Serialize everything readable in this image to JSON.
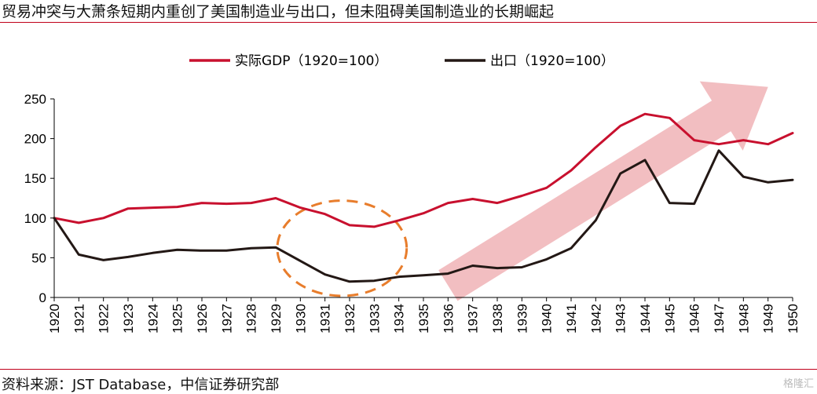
{
  "header": {
    "title": "贸易冲突与大萧条短期内重创了美国制造业与出口，但未阻碍美国制造业的长期崛起"
  },
  "footer": {
    "source": "资料来源：JST Database，中信证券研究部",
    "watermark": "格隆汇"
  },
  "colors": {
    "gdp_series": "#c8102e",
    "export_series": "#231815",
    "arrow": "#f0b3b6",
    "ellipse": "#e87d2c",
    "rule": "#c0001a"
  },
  "chart_data": {
    "type": "line",
    "x": [
      1920,
      1921,
      1922,
      1923,
      1924,
      1925,
      1926,
      1927,
      1928,
      1929,
      1930,
      1931,
      1932,
      1933,
      1934,
      1935,
      1936,
      1937,
      1938,
      1939,
      1940,
      1941,
      1942,
      1943,
      1944,
      1945,
      1946,
      1947,
      1948,
      1949,
      1950
    ],
    "series": [
      {
        "name": "实际GDP（1920=100）",
        "color": "#c8102e",
        "values": [
          100,
          94,
          100,
          112,
          113,
          114,
          119,
          118,
          119,
          125,
          113,
          105,
          91,
          89,
          97,
          106,
          119,
          124,
          119,
          128,
          138,
          160,
          189,
          216,
          231,
          226,
          198,
          193,
          198,
          193,
          207
        ]
      },
      {
        "name": "出口（1920=100）",
        "color": "#231815",
        "values": [
          100,
          54,
          47,
          51,
          56,
          60,
          59,
          59,
          62,
          63,
          46,
          29,
          20,
          21,
          26,
          28,
          30,
          40,
          37,
          38,
          48,
          62,
          97,
          156,
          173,
          119,
          118,
          185,
          152,
          145,
          148
        ]
      }
    ],
    "yticks": [
      0,
      50,
      100,
      150,
      200,
      250
    ],
    "ylim": [
      0,
      250
    ],
    "xlim": [
      1920,
      1950
    ],
    "grid": false,
    "legend_position": "top",
    "annotations": [
      {
        "kind": "dashed-ellipse",
        "years": [
          1929,
          1934
        ],
        "note": "1930-1933 trough"
      },
      {
        "kind": "upward-arrow",
        "years": [
          1936,
          1949
        ]
      }
    ]
  }
}
